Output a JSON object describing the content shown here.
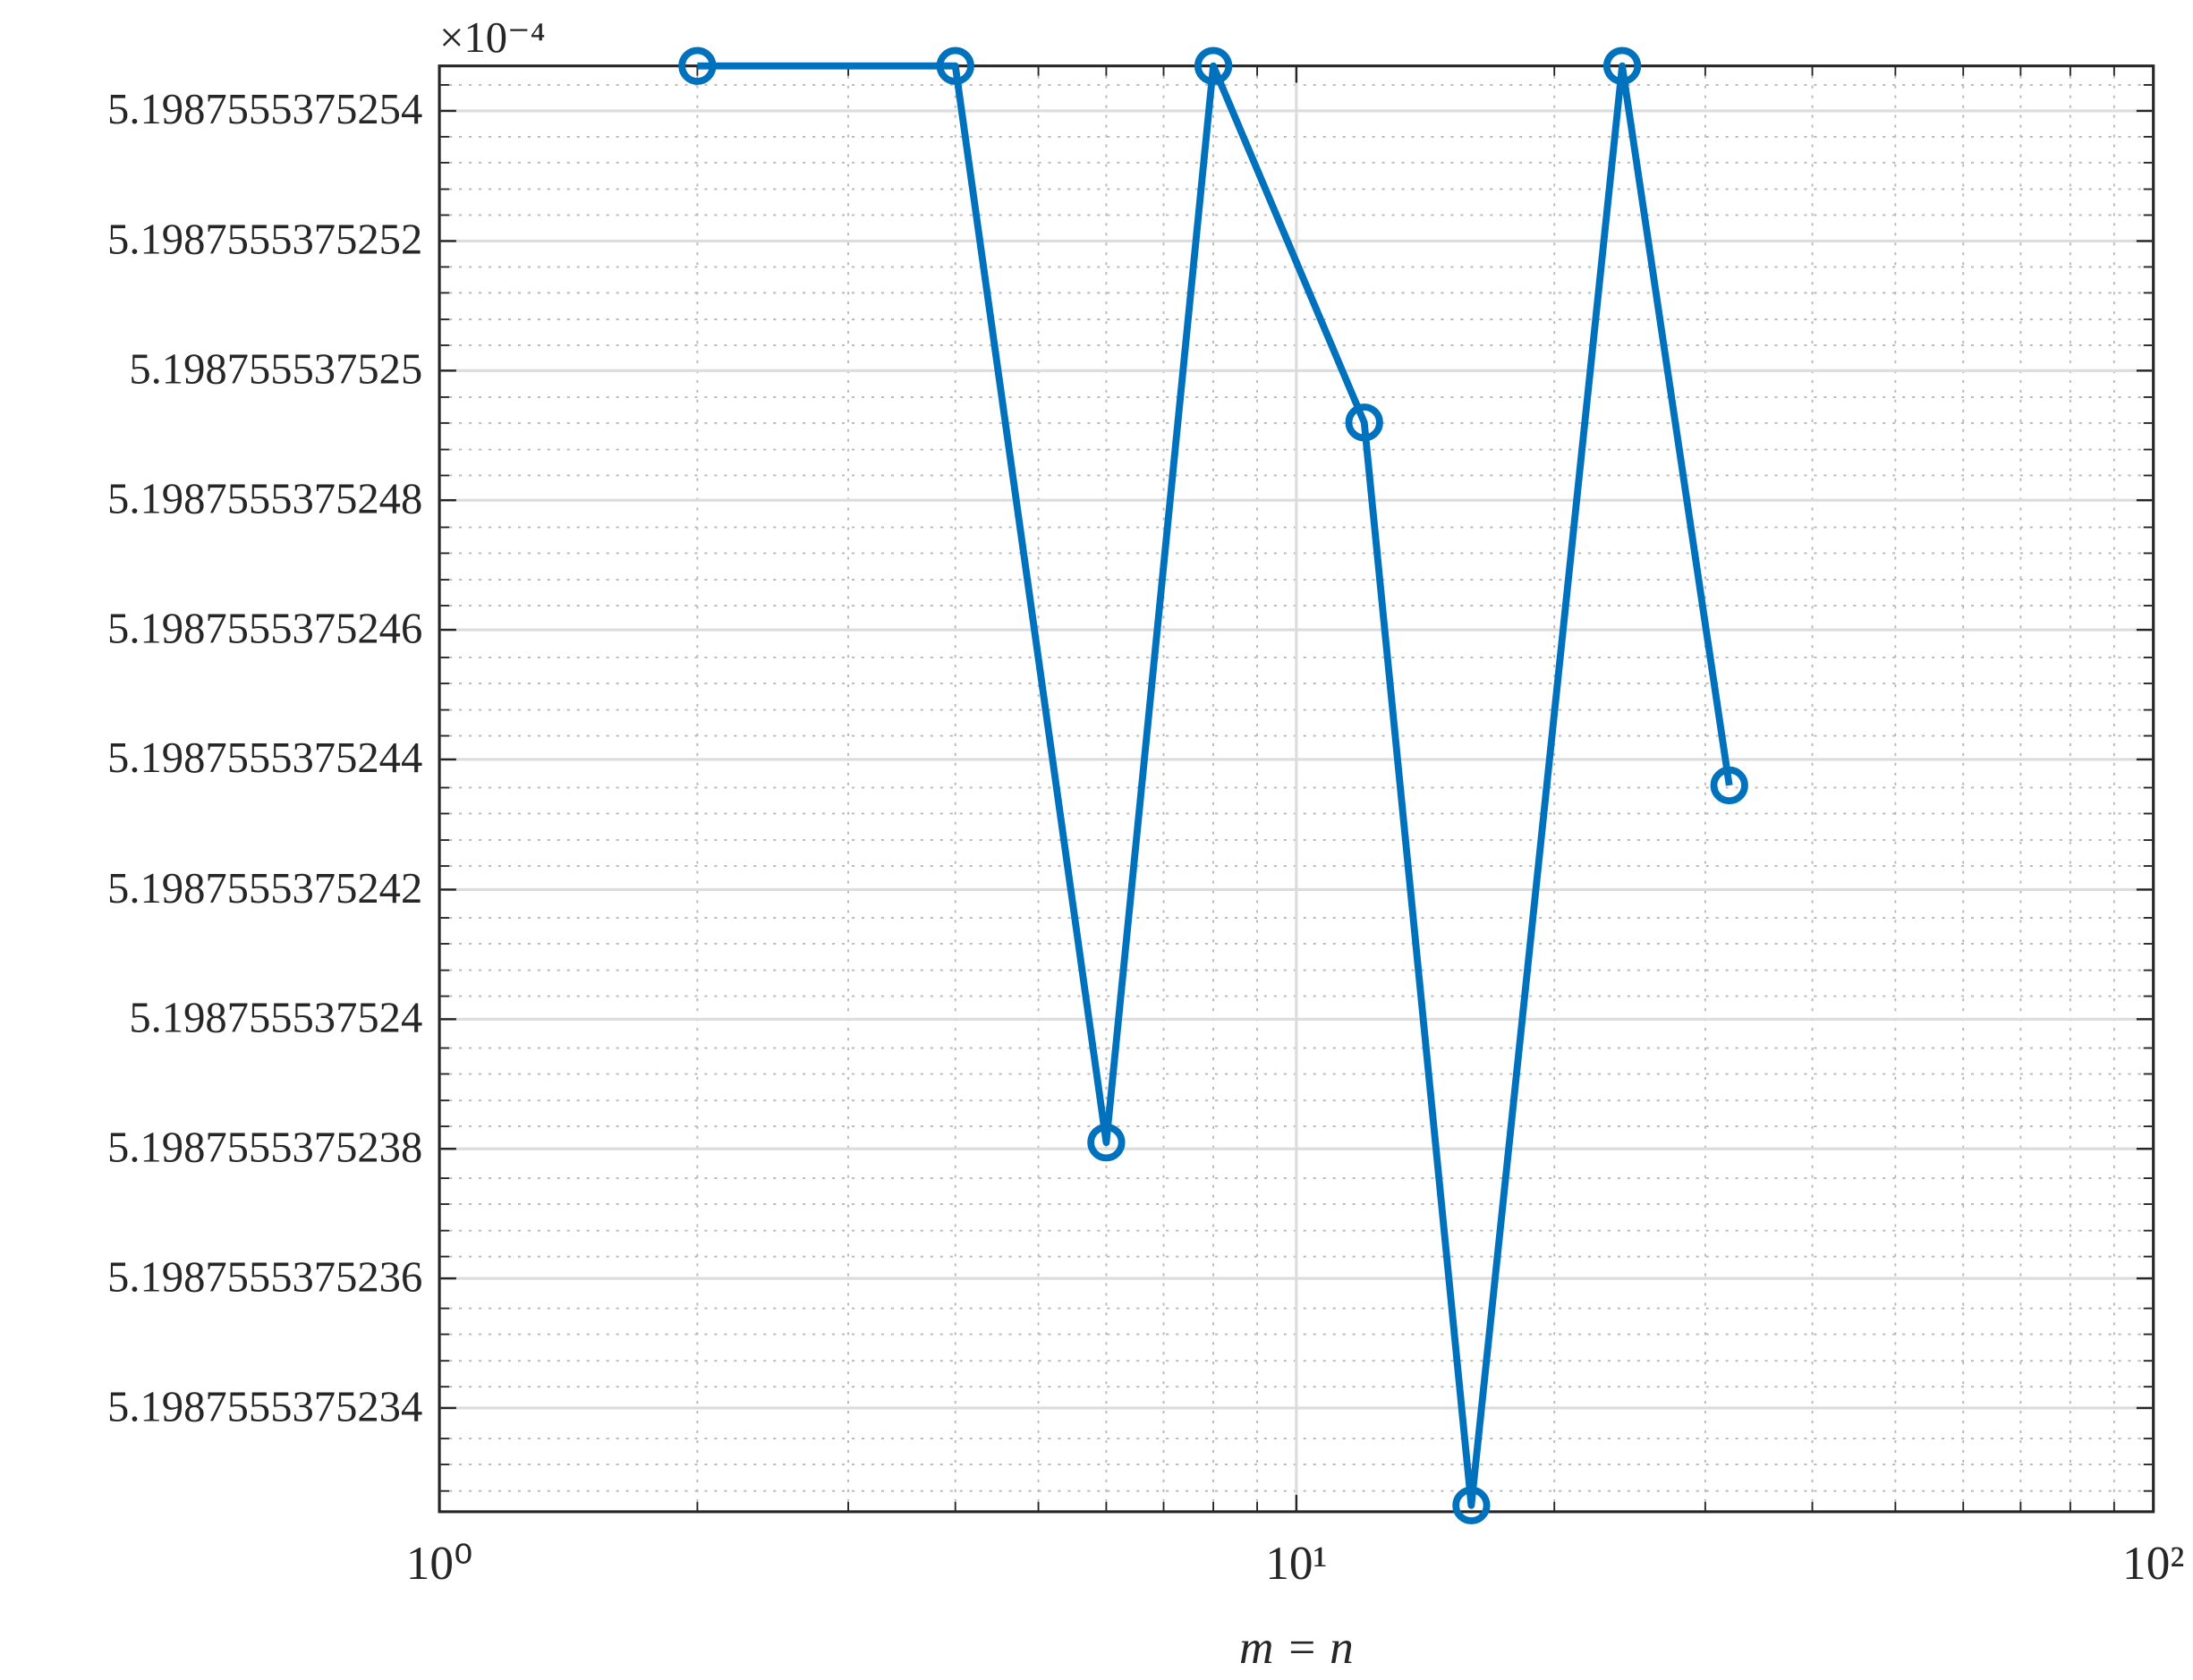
{
  "chart_data": {
    "type": "line",
    "x_label": "m = n",
    "y_exponent_label": "×10⁻⁴",
    "x": [
      2,
      4,
      6,
      8,
      12,
      16,
      24,
      32
    ],
    "values": [
      5.19875553752547,
      5.19875553752547,
      5.19875553752381,
      5.19875553752547,
      5.19875553752492,
      5.19875553752325,
      5.19875553752547,
      5.19875553752436
    ],
    "color": "#0072bd",
    "x_scale": "log",
    "xlim": [
      1,
      100
    ],
    "xticks": [
      {
        "value": 1,
        "label": "10⁰"
      },
      {
        "value": 10,
        "label": "10¹"
      },
      {
        "value": 100,
        "label": "10²"
      }
    ],
    "ylim": [
      5.19875553752324,
      5.19875553752547
    ],
    "yticks": [
      {
        "value": 5.1987555375254,
        "label": "5.1987555375254"
      },
      {
        "value": 5.1987555375252,
        "label": "5.1987555375252"
      },
      {
        "value": 5.198755537525,
        "label": "5.198755537525"
      },
      {
        "value": 5.1987555375248,
        "label": "5.1987555375248"
      },
      {
        "value": 5.1987555375246,
        "label": "5.1987555375246"
      },
      {
        "value": 5.1987555375244,
        "label": "5.1987555375244"
      },
      {
        "value": 5.1987555375242,
        "label": "5.1987555375242"
      },
      {
        "value": 5.198755537524,
        "label": "5.198755537524"
      },
      {
        "value": 5.1987555375238,
        "label": "5.1987555375238"
      },
      {
        "value": 5.1987555375236,
        "label": "5.1987555375236"
      },
      {
        "value": 5.1987555375234,
        "label": "5.1987555375234"
      }
    ],
    "grid": true,
    "minor_grid": true
  }
}
